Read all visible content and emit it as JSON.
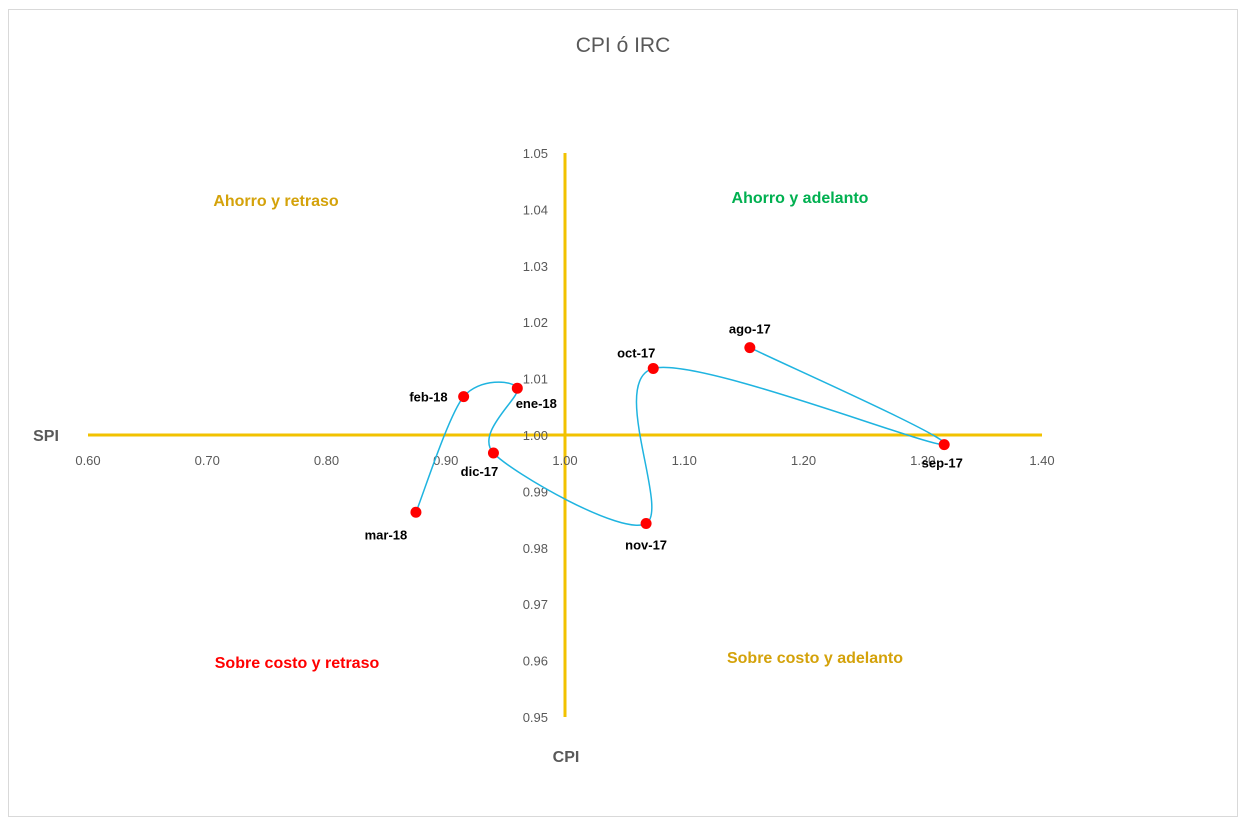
{
  "chart_data": {
    "type": "scatter",
    "title": "CPI ó IRC",
    "xlabel": "CPI",
    "ylabel": "SPI",
    "xlim": [
      0.6,
      1.4
    ],
    "ylim": [
      0.95,
      1.05
    ],
    "x_ticks": [
      "0.60",
      "0.70",
      "0.80",
      "0.90",
      "1.00",
      "1.10",
      "1.20",
      "1.30",
      "1.40"
    ],
    "y_ticks": [
      "0.95",
      "0.96",
      "0.97",
      "0.98",
      "0.99",
      "1.00",
      "1.01",
      "1.02",
      "1.03",
      "1.04",
      "1.05"
    ],
    "grid": false,
    "legend": "none",
    "axis_color": "#f2c200",
    "line_color": "#1fb4e0",
    "marker_color": "#ff0000",
    "points": [
      {
        "label": "ago-17",
        "x": 1.155,
        "y": 1.0155
      },
      {
        "label": "sep-17",
        "x": 1.318,
        "y": 0.9983
      },
      {
        "label": "oct-17",
        "x": 1.074,
        "y": 1.0118
      },
      {
        "label": "nov-17",
        "x": 1.068,
        "y": 0.9843
      },
      {
        "label": "dic-17",
        "x": 0.94,
        "y": 0.9968
      },
      {
        "label": "ene-18",
        "x": 0.96,
        "y": 1.0083
      },
      {
        "label": "feb-18",
        "x": 0.915,
        "y": 1.0068
      },
      {
        "label": "mar-18",
        "x": 0.875,
        "y": 0.9863
      }
    ],
    "quadrants": [
      {
        "text": "Ahorro y retraso",
        "color": "#d4a20a"
      },
      {
        "text": "Ahorro y adelanto",
        "color": "#00b050"
      },
      {
        "text": "Sobre costo y retraso",
        "color": "#ff0000"
      },
      {
        "text": "Sobre costo y adelanto",
        "color": "#d4a20a"
      }
    ]
  }
}
